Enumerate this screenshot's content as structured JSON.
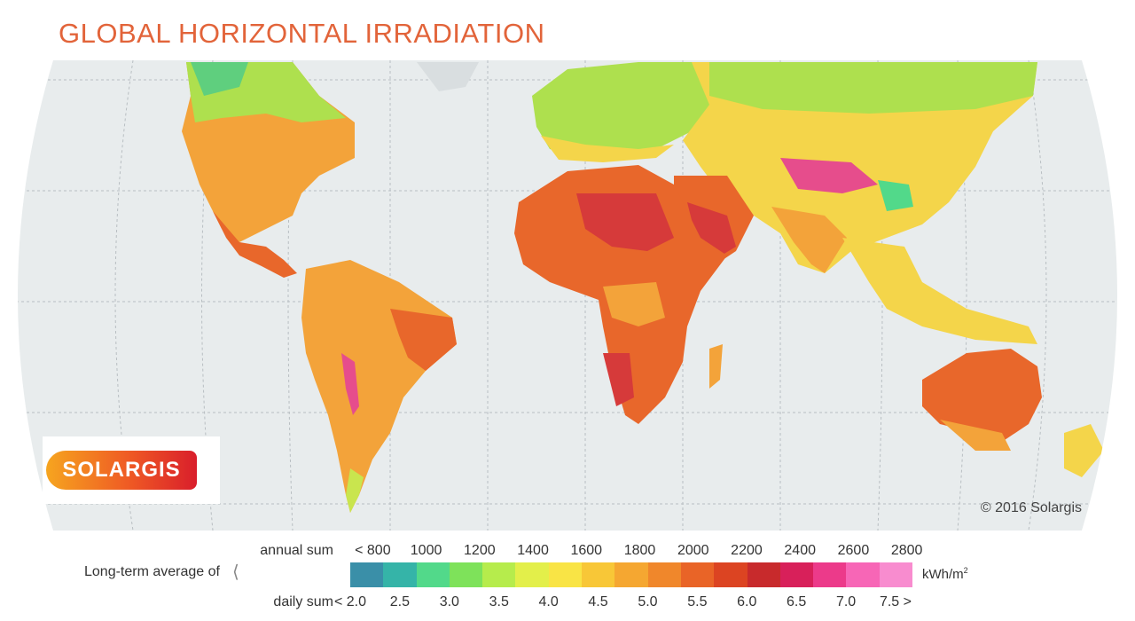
{
  "title": "GLOBAL HORIZONTAL IRRADIATION",
  "logo_text": "SOLARGIS",
  "copyright": "© 2016 Solargis",
  "legend": {
    "long_term_label": "Long-term average of",
    "annual_label": "annual sum",
    "daily_label": "daily sum",
    "unit_main": "kWh/m",
    "unit_sup": "2",
    "annual_ticks": [
      "< 800",
      "1000",
      "1200",
      "1400",
      "1600",
      "1800",
      "2000",
      "2200",
      "2400",
      "2600",
      "2800"
    ],
    "daily_ticks": [
      "< 2.0",
      "2.5",
      "3.0",
      "3.5",
      "4.0",
      "4.5",
      "5.0",
      "5.5",
      "6.0",
      "6.5",
      "7.0",
      "7.5 >"
    ],
    "colors": [
      "#3a8fa8",
      "#35b4a8",
      "#52d98a",
      "#7ee25a",
      "#b6ec4c",
      "#e3ef4a",
      "#f9e445",
      "#f8c737",
      "#f5a731",
      "#f0872b",
      "#e96427",
      "#dc4422",
      "#c82a2c",
      "#d8205a",
      "#ec3a8a",
      "#f766b6",
      "#f88ccf"
    ]
  },
  "map_colors": {
    "ocean": "#e8eced",
    "land_cool": "#7ed46a",
    "land_mid": "#f4d54a",
    "land_warm": "#f3a33a",
    "land_hot": "#e85e2a",
    "land_very_hot": "#d63a3a",
    "land_extreme": "#e64d8c",
    "graticule": "#b8bec2"
  }
}
